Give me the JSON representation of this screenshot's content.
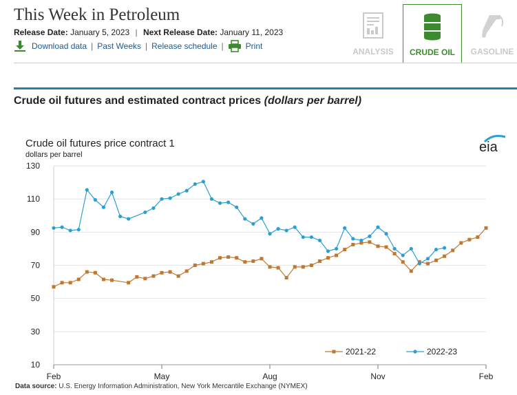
{
  "header": {
    "title": "This Week in Petroleum",
    "release_label": "Release Date:",
    "release_date": "January 5, 2023",
    "separator": "|",
    "next_release_label": "Next Release Date:",
    "next_release_date": "January 11, 2023",
    "links": {
      "download": "Download data",
      "past_weeks": "Past Weeks",
      "schedule": "Release schedule",
      "print": "Print"
    }
  },
  "tabs": [
    {
      "label": "ANALYSIS",
      "icon": "document-chart-icon",
      "active": false
    },
    {
      "label": "CRUDE OIL",
      "icon": "oil-barrel-icon",
      "active": true
    },
    {
      "label": "GASOLINE",
      "icon": "gas-pump-icon",
      "active": false
    }
  ],
  "section": {
    "title": "Crude oil futures and estimated contract prices",
    "units": "(dollars per barrel)"
  },
  "colors": {
    "accent_green": "#3c8a2e",
    "link_blue": "#1a5a96",
    "rule_blue": "#2a7db0",
    "series_2021": "#c07830",
    "series_2022": "#2a9fd6"
  },
  "source": {
    "label": "Data source:",
    "text": "U.S. Energy Information Administration, New York Mercantile Exchange (NYMEX)"
  },
  "chart_data": {
    "type": "line",
    "title": "Crude oil futures  price contract 1",
    "ylabel": "dollars per barrel",
    "ylim": [
      10,
      130
    ],
    "yticks": [
      10,
      30,
      50,
      70,
      90,
      110,
      130
    ],
    "xlim": [
      0,
      52
    ],
    "xticks": [
      {
        "label": "Feb",
        "week": 0
      },
      {
        "label": "May",
        "week": 13
      },
      {
        "label": "Aug",
        "week": 26
      },
      {
        "label": "Nov",
        "week": 39
      },
      {
        "label": "Feb",
        "week": 52
      }
    ],
    "grid": true,
    "legend_position": "bottom-right",
    "logo": "eia",
    "series": [
      {
        "name": "2021-22",
        "color": "#c07830",
        "marker": "square",
        "x": [
          0,
          1,
          2,
          3,
          4,
          5,
          6,
          7,
          8,
          9,
          10,
          11,
          12,
          13,
          14,
          15,
          16,
          17,
          18,
          19,
          20,
          21,
          22,
          23,
          24,
          25,
          26,
          27,
          28,
          29,
          30,
          31,
          32,
          33,
          34,
          35,
          36,
          37,
          38,
          39,
          40,
          41,
          42,
          43,
          44,
          45,
          46,
          47,
          48,
          49,
          50,
          51,
          52
        ],
        "values": [
          57,
          59.5,
          59.5,
          61.5,
          66,
          65.5,
          61.5,
          61,
          null,
          59.5,
          63,
          62,
          63.5,
          65.5,
          66,
          63.5,
          66.5,
          70,
          71,
          72,
          74.5,
          75,
          74.5,
          72,
          72.5,
          74,
          69,
          68.5,
          62.5,
          69,
          69,
          70,
          72.5,
          74.5,
          76,
          79.5,
          82.5,
          83.5,
          84,
          81.5,
          81,
          77,
          72,
          66.5,
          72,
          71,
          73,
          75.5,
          79,
          83.5,
          85.5,
          87,
          92.5
        ]
      },
      {
        "name": "2022-23",
        "color": "#2a9fd6",
        "marker": "circle",
        "x": [
          0,
          1,
          2,
          3,
          4,
          5,
          6,
          7,
          8,
          9,
          10,
          11,
          12,
          13,
          14,
          15,
          16,
          17,
          18,
          19,
          20,
          21,
          22,
          23,
          24,
          25,
          26,
          27,
          28,
          29,
          30,
          31,
          32,
          33,
          34,
          35,
          36,
          37,
          38,
          39,
          40,
          41,
          42,
          43,
          44,
          45,
          46,
          47
        ],
        "values": [
          92.5,
          93,
          91,
          91.5,
          115.5,
          109.5,
          105,
          114,
          99.5,
          98,
          null,
          102,
          104.5,
          110,
          110.5,
          113,
          115,
          119,
          120.5,
          110,
          107.5,
          108,
          105,
          98,
          95,
          98.5,
          89,
          92,
          91,
          93,
          87,
          87,
          85,
          78.5,
          80,
          92.5,
          86,
          85,
          87.5,
          93,
          89,
          80,
          76,
          80,
          71,
          74,
          79.5,
          80.5
        ]
      }
    ]
  }
}
